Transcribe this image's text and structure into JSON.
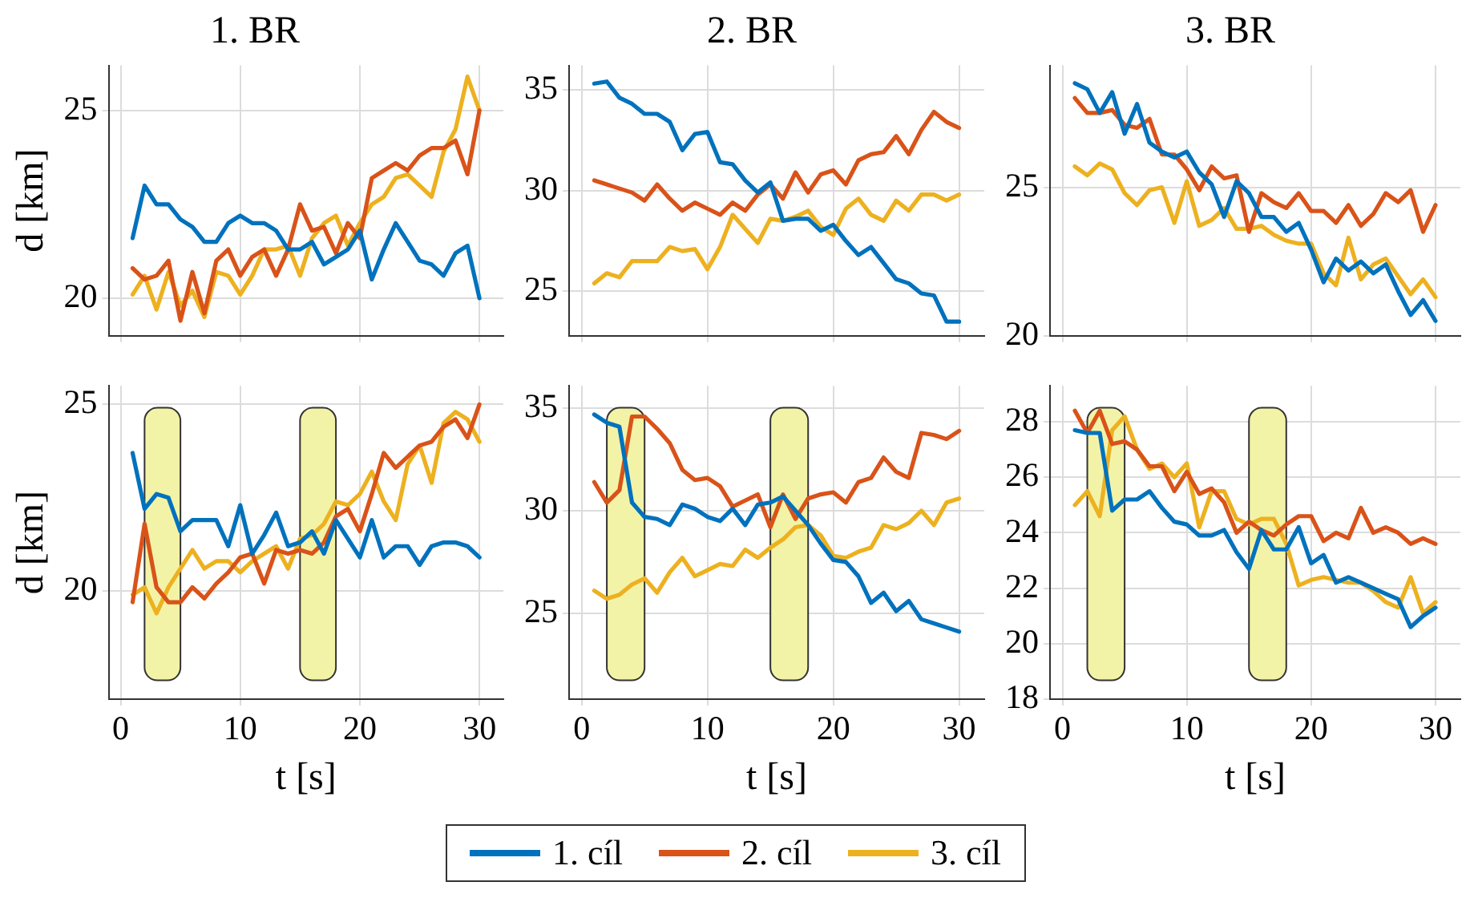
{
  "chart_data": [
    {
      "type": "line",
      "title": "1. BR",
      "ylabel": "d [km]",
      "x": [
        1,
        2,
        3,
        4,
        5,
        6,
        7,
        8,
        9,
        10,
        11,
        12,
        13,
        14,
        15,
        16,
        17,
        18,
        19,
        20,
        21,
        22,
        23,
        24,
        25,
        26,
        27,
        28,
        29,
        30
      ],
      "xlim": [
        -1,
        32
      ],
      "xticks": [
        0,
        10,
        20,
        30
      ],
      "ylim": [
        19,
        26.2
      ],
      "yticks": [
        20,
        25
      ],
      "tick_labels": "y",
      "grid": true,
      "series": [
        {
          "color": "#0072bd",
          "values": [
            21.6,
            23.0,
            22.5,
            22.5,
            22.1,
            21.9,
            21.5,
            21.5,
            22.0,
            22.2,
            22.0,
            22.0,
            21.8,
            21.3,
            21.3,
            21.5,
            20.9,
            21.1,
            21.3,
            21.8,
            20.5,
            21.3,
            22.0,
            21.5,
            21.0,
            20.9,
            20.6,
            21.2,
            21.4,
            20.0
          ]
        },
        {
          "color": "#d95319",
          "values": [
            20.8,
            20.5,
            20.6,
            21.0,
            19.4,
            20.7,
            19.6,
            21.0,
            21.3,
            20.6,
            21.1,
            21.3,
            20.6,
            21.3,
            22.5,
            21.8,
            21.9,
            21.2,
            22.0,
            21.6,
            23.2,
            23.4,
            23.6,
            23.4,
            23.8,
            24.0,
            24.0,
            24.2,
            23.3,
            25.0
          ]
        },
        {
          "color": "#edb120",
          "values": [
            20.1,
            20.6,
            19.7,
            20.7,
            19.8,
            20.2,
            19.5,
            20.7,
            20.6,
            20.1,
            20.6,
            21.3,
            21.3,
            21.4,
            20.6,
            21.6,
            22.0,
            22.2,
            21.4,
            22.0,
            22.5,
            22.7,
            23.2,
            23.3,
            23.0,
            22.7,
            23.9,
            24.5,
            25.9,
            25.0
          ]
        }
      ]
    },
    {
      "type": "line",
      "title": "2. BR",
      "x": [
        1,
        2,
        3,
        4,
        5,
        6,
        7,
        8,
        9,
        10,
        11,
        12,
        13,
        14,
        15,
        16,
        17,
        18,
        19,
        20,
        21,
        22,
        23,
        24,
        25,
        26,
        27,
        28,
        29,
        30
      ],
      "xlim": [
        -1,
        32
      ],
      "xticks": [
        0,
        10,
        20,
        30
      ],
      "ylim": [
        22.8,
        36.2
      ],
      "yticks": [
        25,
        30,
        35
      ],
      "tick_labels": "y",
      "grid": true,
      "series": [
        {
          "color": "#0072bd",
          "values": [
            35.3,
            35.4,
            34.6,
            34.3,
            33.8,
            33.8,
            33.4,
            32.0,
            32.8,
            32.9,
            31.4,
            31.3,
            30.5,
            29.9,
            30.4,
            28.5,
            28.6,
            28.6,
            28.0,
            28.3,
            27.5,
            26.8,
            27.2,
            26.4,
            25.6,
            25.4,
            24.9,
            24.8,
            23.5,
            23.5
          ]
        },
        {
          "color": "#d95319",
          "values": [
            30.5,
            30.3,
            30.1,
            29.9,
            29.5,
            30.3,
            29.6,
            29.0,
            29.4,
            29.1,
            28.8,
            29.4,
            29.0,
            29.8,
            30.3,
            29.6,
            30.9,
            29.9,
            30.8,
            31.0,
            30.3,
            31.5,
            31.8,
            31.9,
            32.7,
            31.8,
            33.0,
            33.9,
            33.4,
            33.1
          ]
        },
        {
          "color": "#edb120",
          "values": [
            25.4,
            25.9,
            25.7,
            26.5,
            26.5,
            26.5,
            27.2,
            27.0,
            27.1,
            26.1,
            27.2,
            28.8,
            28.1,
            27.4,
            28.6,
            28.5,
            28.7,
            29.0,
            28.2,
            27.8,
            29.1,
            29.6,
            28.8,
            28.5,
            29.5,
            29.0,
            29.8,
            29.8,
            29.5,
            29.8
          ]
        }
      ]
    },
    {
      "type": "line",
      "title": "3. BR",
      "x": [
        1,
        2,
        3,
        4,
        5,
        6,
        7,
        8,
        9,
        10,
        11,
        12,
        13,
        14,
        15,
        16,
        17,
        18,
        19,
        20,
        21,
        22,
        23,
        24,
        25,
        26,
        27,
        28,
        29,
        30
      ],
      "xlim": [
        -1,
        32
      ],
      "xticks": [
        0,
        10,
        20,
        30
      ],
      "ylim": [
        20,
        29.1
      ],
      "yticks": [
        20,
        25
      ],
      "tick_labels": "y",
      "grid": true,
      "series": [
        {
          "color": "#0072bd",
          "values": [
            28.5,
            28.3,
            27.5,
            28.2,
            26.8,
            27.8,
            26.5,
            26.2,
            26.0,
            26.2,
            25.5,
            25.1,
            24.0,
            25.2,
            24.8,
            24.0,
            24.0,
            23.5,
            23.8,
            22.9,
            21.8,
            22.6,
            22.2,
            22.5,
            22.1,
            22.4,
            21.5,
            20.7,
            21.2,
            20.5
          ]
        },
        {
          "color": "#d95319",
          "values": [
            28.0,
            27.5,
            27.5,
            27.6,
            27.1,
            27.0,
            27.3,
            26.1,
            26.1,
            25.6,
            24.9,
            25.7,
            25.3,
            25.4,
            23.5,
            24.8,
            24.5,
            24.3,
            24.8,
            24.2,
            24.2,
            23.8,
            24.4,
            23.7,
            24.1,
            24.8,
            24.5,
            24.9,
            23.5,
            24.4
          ]
        },
        {
          "color": "#edb120",
          "values": [
            25.7,
            25.4,
            25.8,
            25.6,
            24.8,
            24.4,
            24.9,
            25.0,
            23.8,
            25.2,
            23.7,
            23.9,
            24.3,
            23.6,
            23.6,
            23.7,
            23.4,
            23.2,
            23.1,
            23.1,
            22.1,
            21.7,
            23.3,
            21.9,
            22.4,
            22.6,
            22.0,
            21.4,
            21.9,
            21.3
          ]
        }
      ]
    },
    {
      "type": "line",
      "ylabel": "d [km]",
      "xlabel": "t [s]",
      "x": [
        1,
        2,
        3,
        4,
        5,
        6,
        7,
        8,
        9,
        10,
        11,
        12,
        13,
        14,
        15,
        16,
        17,
        18,
        19,
        20,
        21,
        22,
        23,
        24,
        25,
        26,
        27,
        28,
        29,
        30
      ],
      "xlim": [
        -1,
        32
      ],
      "xticks": [
        0,
        10,
        20,
        30
      ],
      "ylim": [
        17.1,
        25.5
      ],
      "yticks": [
        20,
        25
      ],
      "grid": true,
      "bands": [
        {
          "axis": "x",
          "from": 2,
          "to": 5,
          "color": "#f3f3a8"
        },
        {
          "axis": "x",
          "from": 15,
          "to": 18,
          "color": "#f3f3a8"
        }
      ],
      "series": [
        {
          "color": "#0072bd",
          "values": [
            23.7,
            22.2,
            22.6,
            22.5,
            21.6,
            21.9,
            21.9,
            21.9,
            21.2,
            22.3,
            21.0,
            21.5,
            22.1,
            21.2,
            21.3,
            21.6,
            21.0,
            21.9,
            21.4,
            20.9,
            21.9,
            20.9,
            21.2,
            21.2,
            20.7,
            21.2,
            21.3,
            21.3,
            21.2,
            20.9
          ]
        },
        {
          "color": "#d95319",
          "values": [
            19.7,
            21.8,
            20.1,
            19.7,
            19.7,
            20.1,
            19.8,
            20.2,
            20.5,
            20.9,
            21.0,
            20.2,
            21.1,
            21.0,
            21.1,
            21.0,
            21.3,
            22.0,
            22.2,
            21.6,
            22.6,
            23.7,
            23.3,
            23.6,
            23.9,
            24.0,
            24.4,
            24.6,
            24.1,
            25.0
          ]
        },
        {
          "color": "#edb120",
          "values": [
            19.9,
            20.1,
            19.4,
            20.1,
            20.6,
            21.1,
            20.6,
            20.8,
            20.8,
            20.5,
            20.8,
            21.0,
            21.2,
            20.6,
            21.4,
            21.5,
            21.8,
            22.4,
            22.3,
            22.6,
            23.2,
            22.4,
            21.9,
            23.4,
            23.9,
            22.9,
            24.5,
            24.8,
            24.6,
            24.0
          ]
        }
      ]
    },
    {
      "type": "line",
      "xlabel": "t [s]",
      "x": [
        1,
        2,
        3,
        4,
        5,
        6,
        7,
        8,
        9,
        10,
        11,
        12,
        13,
        14,
        15,
        16,
        17,
        18,
        19,
        20,
        21,
        22,
        23,
        24,
        25,
        26,
        27,
        28,
        29,
        30
      ],
      "xlim": [
        -1,
        32
      ],
      "xticks": [
        0,
        10,
        20,
        30
      ],
      "ylim": [
        20.8,
        36.1
      ],
      "yticks": [
        25,
        30,
        35
      ],
      "grid": true,
      "legend": "bottom",
      "bands": [
        {
          "axis": "x",
          "from": 2,
          "to": 5,
          "color": "#f3f3a8"
        },
        {
          "axis": "x",
          "from": 15,
          "to": 18,
          "color": "#f3f3a8"
        }
      ],
      "series": [
        {
          "name": "1. cíl",
          "color": "#0072bd",
          "values": [
            34.7,
            34.3,
            34.1,
            30.4,
            29.7,
            29.6,
            29.3,
            30.3,
            30.1,
            29.7,
            29.5,
            30.1,
            29.3,
            30.3,
            30.4,
            30.7,
            30.0,
            29.3,
            28.4,
            27.6,
            27.5,
            26.8,
            25.5,
            26.0,
            25.1,
            25.6,
            24.7,
            24.5,
            24.3,
            24.1
          ]
        },
        {
          "name": "2. cíl",
          "color": "#d95319",
          "values": [
            31.4,
            30.4,
            31.0,
            34.6,
            34.6,
            34.0,
            33.3,
            32.0,
            31.5,
            31.6,
            31.2,
            30.2,
            30.5,
            30.8,
            29.2,
            30.8,
            29.6,
            30.6,
            30.8,
            30.9,
            30.4,
            31.4,
            31.6,
            32.6,
            31.9,
            31.6,
            33.8,
            33.7,
            33.5,
            33.9
          ]
        },
        {
          "name": "3. cíl",
          "color": "#edb120",
          "values": [
            26.1,
            25.7,
            25.9,
            26.4,
            26.7,
            26.0,
            27.0,
            27.7,
            26.8,
            27.1,
            27.4,
            27.3,
            28.1,
            27.7,
            28.2,
            28.6,
            29.2,
            29.3,
            28.8,
            27.8,
            27.7,
            28.0,
            28.2,
            29.3,
            29.1,
            29.4,
            30.0,
            29.3,
            30.4,
            30.6
          ]
        }
      ]
    },
    {
      "type": "line",
      "xlabel": "t [s]",
      "x": [
        1,
        2,
        3,
        4,
        5,
        6,
        7,
        8,
        9,
        10,
        11,
        12,
        13,
        14,
        15,
        16,
        17,
        18,
        19,
        20,
        21,
        22,
        23,
        24,
        25,
        26,
        27,
        28,
        29,
        30
      ],
      "xlim": [
        -1,
        32
      ],
      "xticks": [
        0,
        10,
        20,
        30
      ],
      "ylim": [
        18,
        29.3
      ],
      "yticks": [
        18,
        20,
        22,
        24,
        26,
        28
      ],
      "grid": true,
      "bands": [
        {
          "axis": "x",
          "from": 2,
          "to": 5,
          "color": "#f3f3a8"
        },
        {
          "axis": "x",
          "from": 15,
          "to": 18,
          "color": "#f3f3a8"
        }
      ],
      "series": [
        {
          "color": "#0072bd",
          "values": [
            27.7,
            27.6,
            27.6,
            24.8,
            25.2,
            25.2,
            25.5,
            24.9,
            24.4,
            24.3,
            23.9,
            23.9,
            24.1,
            23.3,
            22.7,
            24.1,
            23.4,
            23.4,
            24.2,
            22.9,
            23.2,
            22.2,
            22.4,
            22.2,
            22.0,
            21.8,
            21.6,
            20.6,
            21.0,
            21.3
          ]
        },
        {
          "color": "#d95319",
          "values": [
            28.4,
            27.6,
            28.4,
            27.2,
            27.3,
            27.0,
            26.4,
            26.4,
            25.5,
            26.2,
            25.4,
            25.6,
            25.1,
            24.0,
            24.4,
            24.1,
            23.9,
            24.3,
            24.6,
            24.6,
            23.7,
            24.0,
            23.8,
            24.9,
            24.0,
            24.2,
            24.0,
            23.6,
            23.8,
            23.6
          ]
        },
        {
          "color": "#edb120",
          "values": [
            25.0,
            25.5,
            24.6,
            27.7,
            28.2,
            27.0,
            26.3,
            26.5,
            26.0,
            26.5,
            24.2,
            25.5,
            25.5,
            24.5,
            24.3,
            24.5,
            24.5,
            23.6,
            22.1,
            22.3,
            22.4,
            22.3,
            22.2,
            22.2,
            21.9,
            21.5,
            21.3,
            22.4,
            21.1,
            21.5
          ]
        }
      ]
    }
  ]
}
